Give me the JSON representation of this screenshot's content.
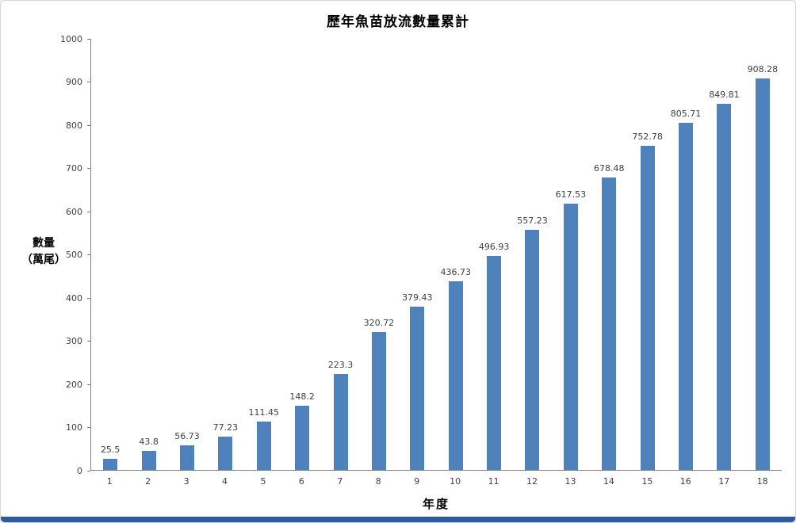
{
  "page": {
    "background": "#ffffff",
    "bottom_strip_color": "#2e5aa0"
  },
  "chart_data": {
    "type": "bar",
    "title": "歷年魚苗放流數量累計",
    "xlabel": "年度",
    "ylabel": "數量（萬尾）",
    "ylabel_lines": [
      "數量",
      "（萬尾）"
    ],
    "categories": [
      "1",
      "2",
      "3",
      "4",
      "5",
      "6",
      "7",
      "8",
      "9",
      "10",
      "11",
      "12",
      "13",
      "14",
      "15",
      "16",
      "17",
      "18"
    ],
    "values": [
      25.5,
      43.8,
      56.73,
      77.23,
      111.45,
      148.2,
      223.3,
      320.72,
      379.43,
      436.73,
      496.93,
      557.23,
      617.53,
      678.48,
      752.78,
      805.71,
      849.81,
      908.28
    ],
    "ylim": [
      0,
      1000
    ],
    "ytick_step": 100,
    "grid": false,
    "legend": null,
    "bar_color": "#4f81bd"
  }
}
